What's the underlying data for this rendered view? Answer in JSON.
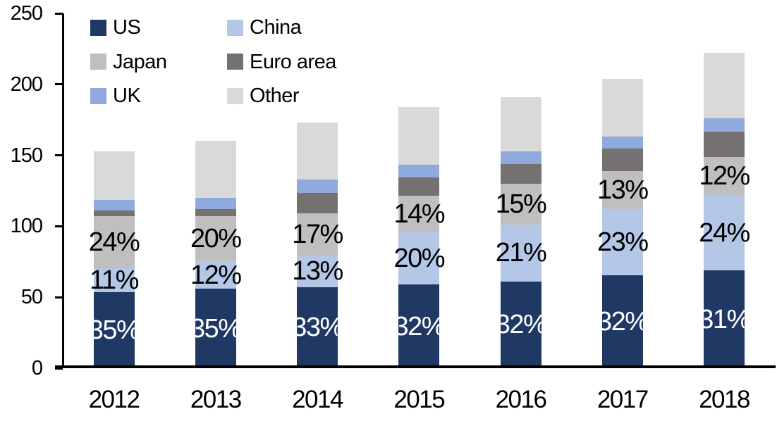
{
  "chart_data": {
    "type": "bar",
    "stacked": true,
    "title": "",
    "xlabel": "",
    "ylabel": "",
    "categories": [
      "2012",
      "2013",
      "2014",
      "2015",
      "2016",
      "2017",
      "2018"
    ],
    "series": [
      {
        "name": "US",
        "color": "#1f3864",
        "values": [
          53.6,
          56.0,
          57.1,
          58.9,
          61.1,
          65.3,
          68.8
        ],
        "labels": [
          "35%",
          "35%",
          "33%",
          "32%",
          "32%",
          "32%",
          "31%"
        ],
        "label_color": "#ffffff"
      },
      {
        "name": "China",
        "color": "#b4c7e7",
        "values": [
          16.8,
          19.2,
          22.5,
          36.8,
          40.1,
          46.9,
          53.3
        ],
        "labels": [
          "11%",
          "12%",
          "13%",
          "20%",
          "21%",
          "23%",
          "24%"
        ],
        "label_color": "#000000"
      },
      {
        "name": "Japan",
        "color": "#bfbfbf",
        "values": [
          36.7,
          32.0,
          29.4,
          25.8,
          28.7,
          26.5,
          26.6
        ],
        "labels": [
          "24%",
          "20%",
          "17%",
          "14%",
          "15%",
          "13%",
          "12%"
        ],
        "label_color": "#000000"
      },
      {
        "name": "Euro area",
        "color": "#767171",
        "values": [
          4.1,
          5.0,
          14.4,
          12.9,
          14.1,
          16.1,
          17.9
        ]
      },
      {
        "name": "UK",
        "color": "#8faadc",
        "values": [
          7.5,
          8.0,
          9.4,
          9.1,
          8.6,
          8.2,
          9.5
        ]
      },
      {
        "name": "Other",
        "color": "#d9d9d9",
        "values": [
          34.3,
          39.8,
          40.2,
          40.5,
          38.4,
          41.0,
          45.9
        ]
      }
    ],
    "totals": [
      153,
      160,
      173,
      184,
      191,
      204,
      222
    ],
    "y_axis": {
      "min": 0,
      "max": 250,
      "tick_values": [
        0,
        50,
        100,
        150,
        200,
        250
      ],
      "tick_labels": [
        "0",
        "50",
        "100",
        "150",
        "200",
        "250"
      ]
    },
    "legend": {
      "position": "top-left",
      "columns": 2,
      "items": [
        "US",
        "China",
        "Japan",
        "Euro area",
        "UK",
        "Other"
      ]
    },
    "grid": "off"
  }
}
